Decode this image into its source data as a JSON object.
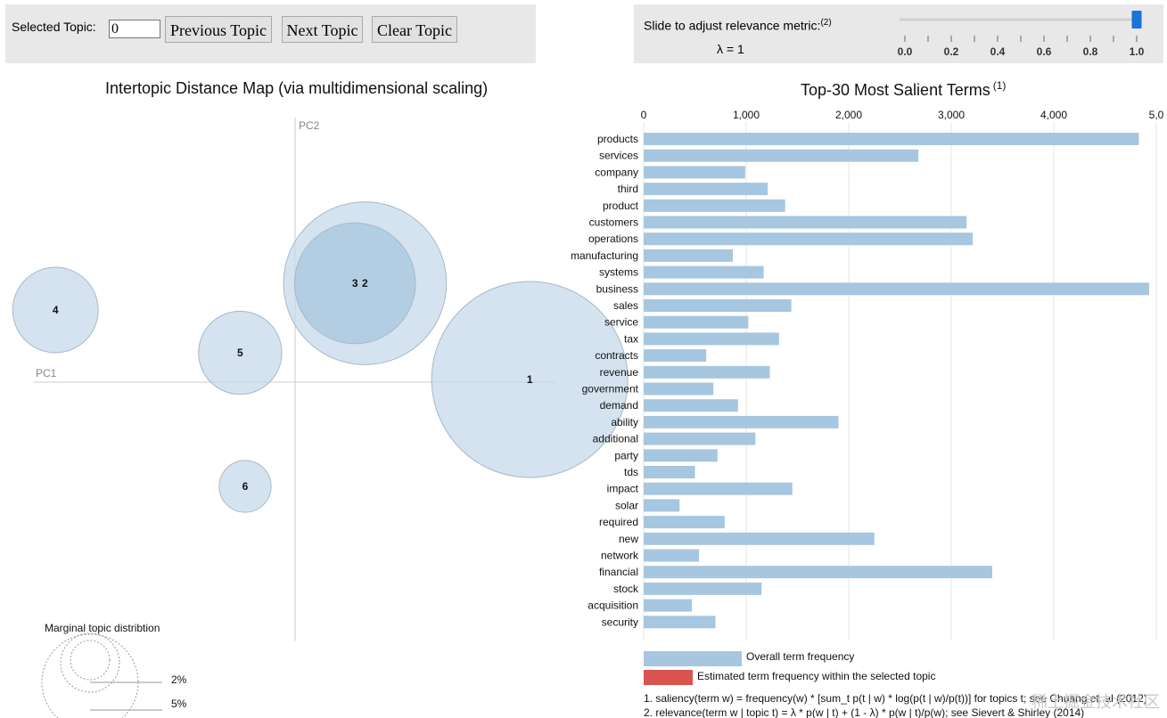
{
  "controls": {
    "selected_topic_label": "Selected Topic:",
    "selected_topic_value": "0",
    "prev_label": "Previous Topic",
    "next_label": "Next Topic",
    "clear_label": "Clear Topic",
    "slider_label": "Slide to adjust relevance metric:",
    "slider_note": "(2)",
    "lambda_text": "λ = 1",
    "lambda_value": 1.0,
    "slider_ticks": [
      "0.0",
      "0.2",
      "0.4",
      "0.6",
      "0.8",
      "1.0"
    ]
  },
  "map": {
    "title": "Intertopic Distance Map (via multidimensional scaling)",
    "pc1_label": "PC1",
    "pc2_label": "PC2",
    "legend_title": "Marginal topic distribtion",
    "legend_small": "2%",
    "legend_large": "5%"
  },
  "bars": {
    "title": "Top-30 Most Salient Terms",
    "title_note": "(1)",
    "legend_overall": "Overall term frequency",
    "legend_estimated": "Estimated term frequency within the selected topic",
    "footnote1": "1. saliency(term w) = frequency(w) * [sum_t p(t | w) * log(p(t | w)/p(t))] for topics t; see Chuang et. al (2012)",
    "footnote2": "2. relevance(term w | topic t) = λ * p(w | t) + (1 - λ) * p(w | t)/p(w); see Sievert & Shirley (2014)"
  },
  "colors": {
    "bar": "#a7c6e0",
    "estimated": "#d9534f",
    "circle_fill": "#c6d9ea",
    "circle_selected": "#a8c6df",
    "axis_line": "#cccccc"
  },
  "chart_data": [
    {
      "type": "scatter",
      "title": "Intertopic Distance Map (via multidimensional scaling)",
      "xlabel": "PC1",
      "ylabel": "PC2",
      "xlim": [
        -0.5,
        0.5
      ],
      "ylim": [
        -0.5,
        0.5
      ],
      "points": [
        {
          "topic": "1",
          "x": 0.47,
          "y": 0.01,
          "size": 1.0
        },
        {
          "topic": "2",
          "x": 0.14,
          "y": 0.37,
          "size": 0.69
        },
        {
          "topic": "3",
          "x": 0.12,
          "y": 0.37,
          "size": 0.38
        },
        {
          "topic": "4",
          "x": -0.48,
          "y": 0.27,
          "size": 0.19
        },
        {
          "topic": "5",
          "x": -0.11,
          "y": 0.11,
          "size": 0.18
        },
        {
          "topic": "6",
          "x": -0.1,
          "y": -0.39,
          "size": 0.07
        }
      ]
    },
    {
      "type": "bar",
      "orientation": "horizontal",
      "title": "Top-30 Most Salient Terms",
      "xlim": [
        0,
        5000
      ],
      "xticks": [
        "0",
        "1,000",
        "2,000",
        "3,000",
        "4,000",
        "5,0"
      ],
      "categories": [
        "products",
        "services",
        "company",
        "third",
        "product",
        "customers",
        "operations",
        "manufacturing",
        "systems",
        "business",
        "sales",
        "service",
        "tax",
        "contracts",
        "revenue",
        "government",
        "demand",
        "ability",
        "additional",
        "party",
        "tds",
        "impact",
        "solar",
        "required",
        "new",
        "network",
        "financial",
        "stock",
        "acquisition",
        "security"
      ],
      "values": [
        4830,
        2680,
        990,
        1210,
        1380,
        3150,
        3210,
        870,
        1170,
        4930,
        1440,
        1020,
        1320,
        610,
        1230,
        680,
        920,
        1900,
        1090,
        720,
        500,
        1450,
        350,
        790,
        2250,
        540,
        3400,
        1150,
        470,
        700
      ]
    }
  ]
}
